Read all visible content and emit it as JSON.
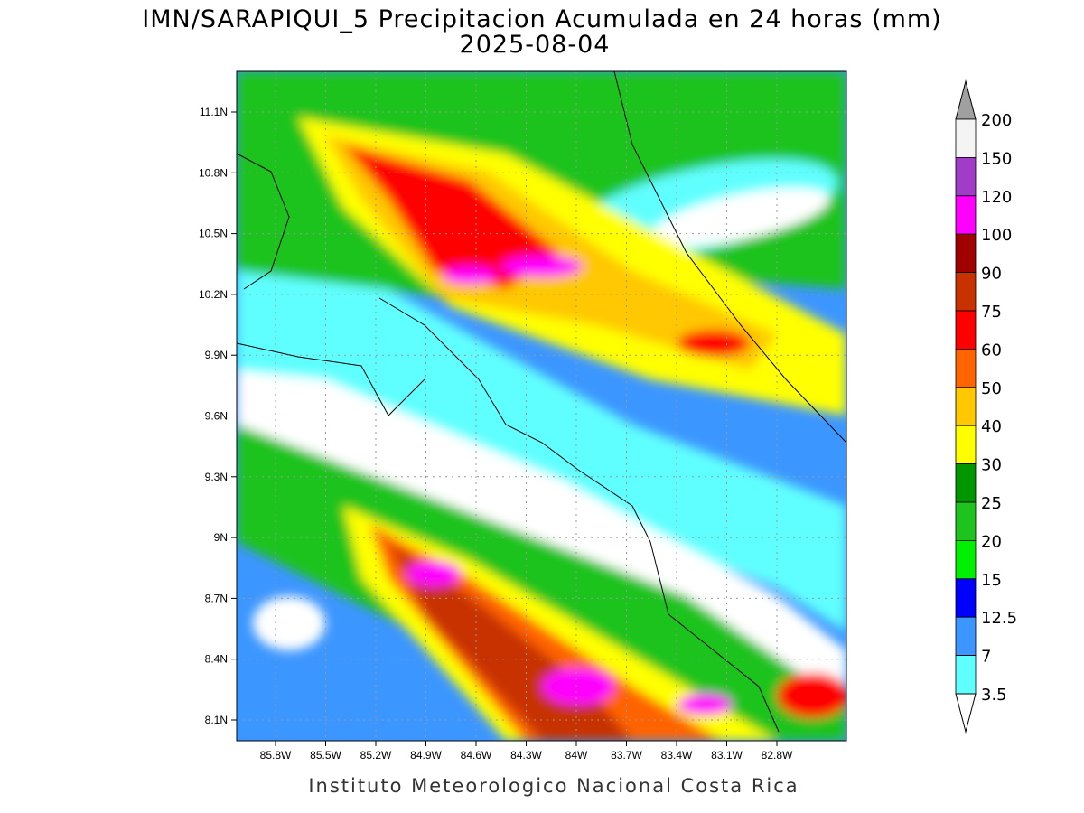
{
  "title": "IMN/SARAPIQUI_5 Precipitacion Acumulada en 24 horas (mm)",
  "date": "2025-08-04",
  "map": {
    "lon_ticks": [
      "85.8W",
      "85.5W",
      "85.2W",
      "84.9W",
      "84.6W",
      "84.3W",
      "84W",
      "83.7W",
      "83.4W",
      "83.1W",
      "82.8W"
    ],
    "lat_ticks": [
      "11.1N",
      "10.8N",
      "10.5N",
      "10.2N",
      "9.9N",
      "9.6N",
      "9.3N",
      "9N",
      "8.7N",
      "8.4N",
      "8.1N"
    ]
  },
  "colorbar": {
    "labels": [
      "200",
      "150",
      "120",
      "100",
      "90",
      "75",
      "60",
      "50",
      "40",
      "30",
      "25",
      "20",
      "15",
      "12.5",
      "7",
      "3.5"
    ],
    "colors": [
      "#f4f4f4",
      "#a03cc8",
      "#ff00ff",
      "#a00000",
      "#c83200",
      "#ff0000",
      "#ff6400",
      "#ffc800",
      "#ffff00",
      "#009600",
      "#1ec31e",
      "#00f000",
      "#0000ff",
      "#3c96ff",
      "#60ffff"
    ],
    "over_color": "#a0a0a0",
    "under_color": "#ffffff"
  },
  "footer": "Instituto Meteorologico Nacional Costa Rica"
}
